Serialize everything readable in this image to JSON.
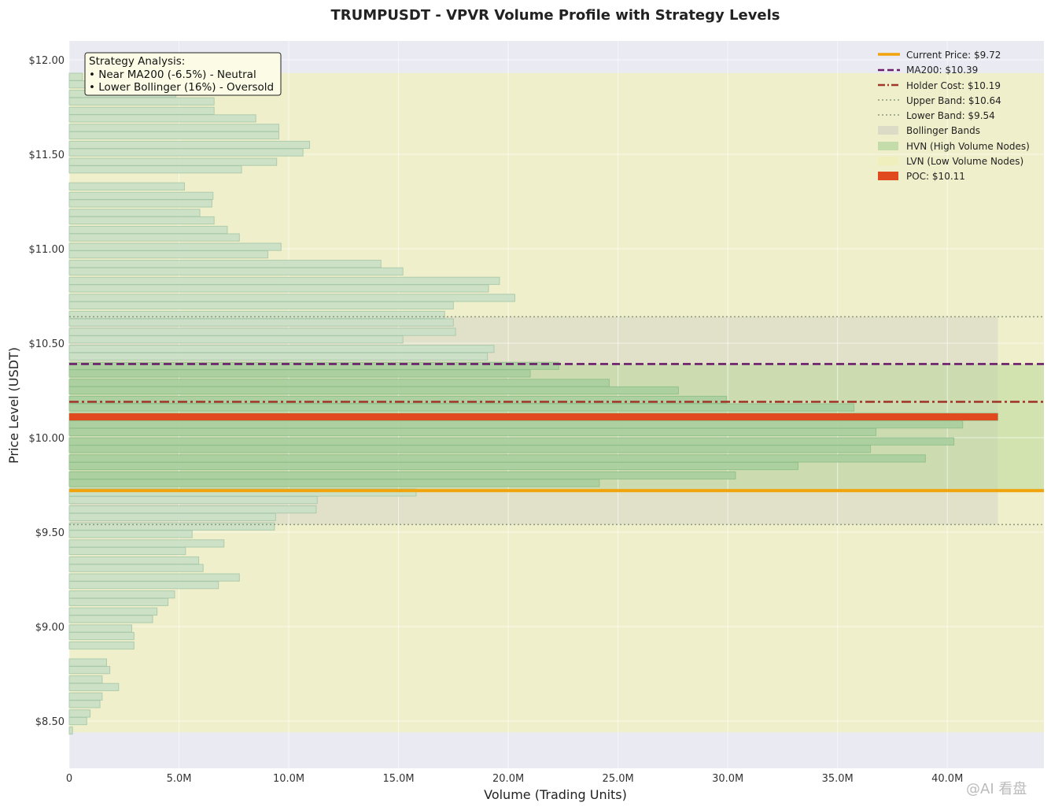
{
  "chart_data": {
    "type": "bar",
    "orientation": "horizontal",
    "title": "TRUMPUSDT - VPVR Volume Profile with Strategy Levels",
    "xlabel": "Volume (Trading Units)",
    "ylabel": "Price Level (USDT)",
    "xlim": [
      0,
      44.4
    ],
    "ylim": [
      8.25,
      12.1
    ],
    "x_unit": "M",
    "x_ticks": [
      0,
      5,
      10,
      15,
      20,
      25,
      30,
      35,
      40
    ],
    "x_tick_labels": [
      "0",
      "5.0M",
      "10.0M",
      "15.0M",
      "20.0M",
      "25.0M",
      "30.0M",
      "35.0M",
      "40.0M"
    ],
    "y_ticks": [
      8.5,
      9.0,
      9.5,
      10.0,
      10.5,
      11.0,
      11.5,
      12.0
    ],
    "y_tick_labels": [
      "$8.50",
      "$9.00",
      "$9.50",
      "$10.00",
      "$10.50",
      "$11.00",
      "$11.50",
      "$12.00"
    ],
    "grid": true,
    "legend_position": "top-right",
    "price_step": 0.0446,
    "profile": [
      {
        "price": 8.45,
        "volume": 0.15
      },
      {
        "price": 8.5,
        "volume": 0.8
      },
      {
        "price": 8.54,
        "volume": 0.95
      },
      {
        "price": 8.59,
        "volume": 1.4
      },
      {
        "price": 8.63,
        "volume": 1.5
      },
      {
        "price": 8.68,
        "volume": 2.25
      },
      {
        "price": 8.72,
        "volume": 1.5
      },
      {
        "price": 8.77,
        "volume": 1.85
      },
      {
        "price": 8.81,
        "volume": 1.7
      },
      {
        "price": 8.86,
        "volume": 0.0
      },
      {
        "price": 8.9,
        "volume": 2.95
      },
      {
        "price": 8.95,
        "volume": 2.95
      },
      {
        "price": 8.99,
        "volume": 2.85
      },
      {
        "price": 9.04,
        "volume": 3.8
      },
      {
        "price": 9.08,
        "volume": 4.0
      },
      {
        "price": 9.13,
        "volume": 4.5
      },
      {
        "price": 9.17,
        "volume": 4.8
      },
      {
        "price": 9.22,
        "volume": 6.8
      },
      {
        "price": 9.26,
        "volume": 7.75
      },
      {
        "price": 9.31,
        "volume": 6.1
      },
      {
        "price": 9.35,
        "volume": 5.9
      },
      {
        "price": 9.4,
        "volume": 5.3
      },
      {
        "price": 9.44,
        "volume": 7.05
      },
      {
        "price": 9.49,
        "volume": 5.6
      },
      {
        "price": 9.53,
        "volume": 9.35
      },
      {
        "price": 9.58,
        "volume": 9.4
      },
      {
        "price": 9.62,
        "volume": 11.25
      },
      {
        "price": 9.67,
        "volume": 11.3
      },
      {
        "price": 9.71,
        "volume": 15.8
      },
      {
        "price": 9.76,
        "volume": 24.15
      },
      {
        "price": 9.8,
        "volume": 30.35
      },
      {
        "price": 9.85,
        "volume": 33.2
      },
      {
        "price": 9.89,
        "volume": 39.0
      },
      {
        "price": 9.94,
        "volume": 36.5
      },
      {
        "price": 9.98,
        "volume": 40.3
      },
      {
        "price": 10.03,
        "volume": 36.75
      },
      {
        "price": 10.07,
        "volume": 40.7
      },
      {
        "price": 10.11,
        "volume": 42.3
      },
      {
        "price": 10.16,
        "volume": 35.75
      },
      {
        "price": 10.2,
        "volume": 29.95
      },
      {
        "price": 10.25,
        "volume": 27.75
      },
      {
        "price": 10.29,
        "volume": 24.6
      },
      {
        "price": 10.34,
        "volume": 21.0
      },
      {
        "price": 10.38,
        "volume": 22.3
      },
      {
        "price": 10.43,
        "volume": 19.05
      },
      {
        "price": 10.47,
        "volume": 19.35
      },
      {
        "price": 10.52,
        "volume": 15.2
      },
      {
        "price": 10.56,
        "volume": 17.6
      },
      {
        "price": 10.61,
        "volume": 17.5
      },
      {
        "price": 10.65,
        "volume": 17.1
      },
      {
        "price": 10.7,
        "volume": 17.5
      },
      {
        "price": 10.74,
        "volume": 20.3
      },
      {
        "price": 10.79,
        "volume": 19.1
      },
      {
        "price": 10.83,
        "volume": 19.6
      },
      {
        "price": 10.88,
        "volume": 15.2
      },
      {
        "price": 10.92,
        "volume": 14.2
      },
      {
        "price": 10.97,
        "volume": 9.05
      },
      {
        "price": 11.01,
        "volume": 9.65
      },
      {
        "price": 11.06,
        "volume": 7.75
      },
      {
        "price": 11.1,
        "volume": 7.2
      },
      {
        "price": 11.15,
        "volume": 6.6
      },
      {
        "price": 11.19,
        "volume": 5.95
      },
      {
        "price": 11.24,
        "volume": 6.5
      },
      {
        "price": 11.28,
        "volume": 6.55
      },
      {
        "price": 11.33,
        "volume": 5.25
      },
      {
        "price": 11.37,
        "volume": 0.0
      },
      {
        "price": 11.42,
        "volume": 7.85
      },
      {
        "price": 11.46,
        "volume": 9.45
      },
      {
        "price": 11.51,
        "volume": 10.65
      },
      {
        "price": 11.55,
        "volume": 10.95
      },
      {
        "price": 11.6,
        "volume": 9.55
      },
      {
        "price": 11.64,
        "volume": 9.55
      },
      {
        "price": 11.69,
        "volume": 8.5
      },
      {
        "price": 11.73,
        "volume": 6.6
      },
      {
        "price": 11.78,
        "volume": 6.6
      },
      {
        "price": 11.82,
        "volume": 4.85
      },
      {
        "price": 11.87,
        "volume": 4.1
      },
      {
        "price": 11.91,
        "volume": 0.6
      }
    ],
    "levels": [
      {
        "key": "current_price",
        "value": 9.72,
        "label": "Current Price: $9.72",
        "color": "#f0a30a",
        "style": "solid"
      },
      {
        "key": "ma200",
        "value": 10.39,
        "label": "MA200: $10.39",
        "color": "#6b1c6b",
        "style": "dashed"
      },
      {
        "key": "holder_cost",
        "value": 10.19,
        "label": "Holder Cost: $10.19",
        "color": "#a0382c",
        "style": "dashdot"
      },
      {
        "key": "upper_band",
        "value": 10.64,
        "label": "Upper Band: $10.64",
        "color": "#8a9a7a",
        "style": "dotted"
      },
      {
        "key": "lower_band",
        "value": 9.54,
        "label": "Lower Band: $9.54",
        "color": "#8a9a7a",
        "style": "dotted"
      }
    ],
    "poc": {
      "value": 10.11,
      "volume": 42.3,
      "label": "POC: $10.11",
      "color": "#e04a1e"
    },
    "regions": {
      "bollinger": {
        "from": 9.54,
        "to": 10.64,
        "label": "Bollinger Bands",
        "color": "#d8d8c0"
      },
      "hvn": {
        "from": 9.72,
        "to": 10.39,
        "label": "HVN (High Volume Nodes)",
        "color": "#b8d8a0"
      },
      "lvn": {
        "from": 8.44,
        "to": 11.93,
        "label": "LVN (Low Volume Nodes)",
        "color": "#eeeec0"
      }
    },
    "annotation": {
      "lines": [
        "Strategy Analysis:",
        "• Near MA200 (-6.5%) - Neutral",
        "• Lower Bollinger (16%) - Oversold"
      ]
    },
    "colors": {
      "plot_bg": "#eaeaf2",
      "bar_fill": "#c9e0c6",
      "bar_stroke": "#a8c8aa",
      "hvn_bar_fill": "#a9cf9f",
      "hvn_bar_stroke": "#8fbf8a"
    }
  },
  "watermark": "@AI 看盘"
}
